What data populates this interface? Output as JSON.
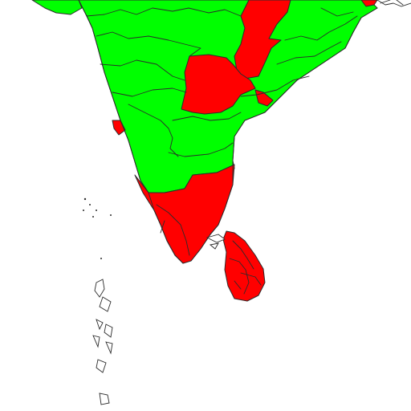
{
  "map": {
    "colors": {
      "green": "#00ff00",
      "red": "#ff0000",
      "outline": "#2b2b2b",
      "background": "#ffffff"
    },
    "regions": [
      {
        "name": "india-mainland",
        "status": "green"
      },
      {
        "name": "rajasthan-gujarat-tip",
        "status": "green"
      },
      {
        "name": "chhattisgarh-jharkhand",
        "status": "red"
      },
      {
        "name": "telangana",
        "status": "red"
      },
      {
        "name": "tamil-nadu",
        "status": "red"
      },
      {
        "name": "sri-lanka",
        "status": "red"
      },
      {
        "name": "goa",
        "status": "red"
      },
      {
        "name": "northeast-corner",
        "status": "red"
      },
      {
        "name": "andhra-coast-east",
        "status": "red"
      },
      {
        "name": "kerala",
        "status": "red"
      }
    ]
  }
}
